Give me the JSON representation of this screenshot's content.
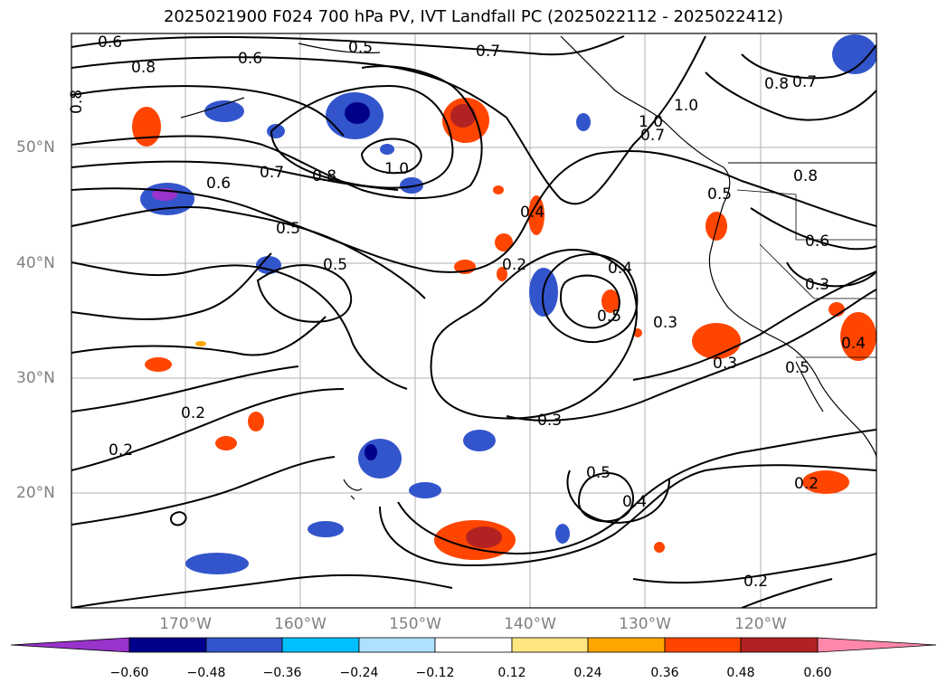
{
  "title": "2025021900 F024 700 hPa PV, IVT Landfall PC (2025022112 - 2025022412)",
  "map": {
    "latitude_labels": [
      "50°N",
      "40°N",
      "30°N",
      "20°N"
    ],
    "longitude_labels": [
      "170°W",
      "160°W",
      "150°W",
      "140°W",
      "130°W",
      "120°W"
    ],
    "contour_labels": [
      "0.6",
      "0.8",
      "0.5",
      "0.7",
      "0.8",
      "1.0",
      "0.6",
      "0.7",
      "0.8",
      "1.0",
      "0.6",
      "0.5",
      "0.5",
      "0.4",
      "0.2",
      "0.4",
      "0.5",
      "0.3",
      "0.3",
      "0.3",
      "0.5",
      "0.4",
      "0.2",
      "0.2",
      "0.2",
      "0.2",
      "0.8",
      "0.7",
      "0.8",
      "1.0",
      "0.7",
      "0.5",
      "0.6",
      "0.3",
      "0.4",
      "0.5"
    ]
  },
  "colorbar": {
    "ticks": [
      "−0.60",
      "−0.48",
      "−0.36",
      "−0.24",
      "−0.12",
      "0.12",
      "0.24",
      "0.36",
      "0.48",
      "0.60"
    ],
    "colors": [
      "#9933cc",
      "#00008b",
      "#3355cc",
      "#00bfff",
      "#b0e0ff",
      "#ffffff",
      "#ffe680",
      "#ffa500",
      "#ff4500",
      "#b22222",
      "#ff88aa"
    ]
  }
}
